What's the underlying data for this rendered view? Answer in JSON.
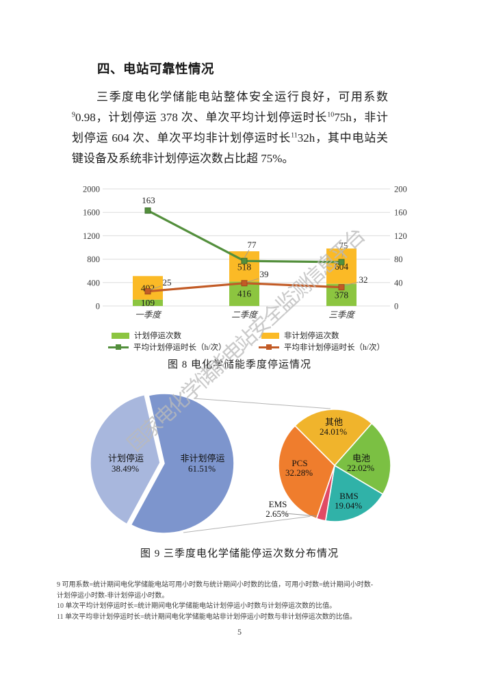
{
  "watermark": "国家电化学储能电站安全监测信息平台",
  "heading": "四、电站可靠性情况",
  "paragraph": {
    "lines": [
      [
        {
          "t": "三季度电化学储能电站整体安全运行良好，可用系数"
        }
      ],
      [
        {
          "t": "9",
          "sup": true
        },
        {
          "t": "0.98，计划停运 378 次、单次平均计划停运时长"
        },
        {
          "t": "10",
          "sup": true
        },
        {
          "t": "75h，非计"
        }
      ],
      [
        {
          "t": "划停运 604 次、单次平均非计划停运时长"
        },
        {
          "t": "11",
          "sup": true
        },
        {
          "t": "32h，其中电站关"
        }
      ],
      [
        {
          "t": "键设备及系统非计划停运次数占比超 75%。"
        }
      ]
    ]
  },
  "figure8": {
    "caption": "图 8 电化学储能季度停运情况",
    "legend": [
      {
        "label": "计划停运次数",
        "type": "swatch",
        "color": "#8CC540"
      },
      {
        "label": "非计划停运次数",
        "type": "swatch",
        "color": "#FBBA26"
      },
      {
        "label": "平均计划停运时长（h/次）",
        "type": "line",
        "color": "#538F3C"
      },
      {
        "label": "平均非计划停运时长（h/次）",
        "type": "line",
        "color": "#C25B26"
      }
    ]
  },
  "figure9": {
    "caption": "图 9 三季度电化学储能停运次数分布情况"
  },
  "chart_data": [
    {
      "type": "bar",
      "subtype": "stacked-bars-with-lines",
      "categories": [
        "一季度",
        "二季度",
        "三季度"
      ],
      "left_axis": {
        "min": 0,
        "max": 2000,
        "ticks": [
          0,
          400,
          800,
          1200,
          1600,
          2000
        ]
      },
      "right_axis": {
        "min": 0,
        "max": 200,
        "ticks": [
          0,
          40,
          80,
          120,
          160,
          200
        ]
      },
      "series": [
        {
          "name": "计划停运次数",
          "render": "bar",
          "axis": "left",
          "color": "#8CC540",
          "values": [
            109,
            416,
            378
          ]
        },
        {
          "name": "非计划停运次数",
          "render": "bar",
          "axis": "left",
          "stacked_on": "计划停运次数",
          "color": "#FBBA26",
          "values": [
            402,
            518,
            604
          ]
        },
        {
          "name": "平均计划停运时长（h/次）",
          "render": "line",
          "axis": "right",
          "color": "#538F3C",
          "values": [
            163,
            77,
            75
          ]
        },
        {
          "name": "平均非计划停运时长（h/次）",
          "render": "line",
          "axis": "right",
          "color": "#C25B26",
          "values": [
            25,
            39,
            32
          ]
        }
      ],
      "title": "图 8 电化学储能季度停运情况",
      "xlabel": "",
      "ylabel": "",
      "grid": true,
      "legend_position": "bottom"
    },
    {
      "type": "pie",
      "subtype": "pie-of-pie",
      "title": "图 9 三季度电化学储能停运次数分布情况",
      "main": {
        "slices": [
          {
            "label": "非计划停运",
            "value": 61.51,
            "display": "61.51%",
            "color": "#7D95CD"
          },
          {
            "label": "计划停运",
            "value": 38.49,
            "display": "38.49%",
            "color": "#A8B7DD"
          }
        ]
      },
      "detail": {
        "slices": [
          {
            "label": "其他",
            "value": 24.01,
            "display": "24.01%",
            "color": "#F0B42C"
          },
          {
            "label": "电池",
            "value": 22.02,
            "display": "22.02%",
            "color": "#7BC043"
          },
          {
            "label": "BMS",
            "value": 19.04,
            "display": "19.04%",
            "color": "#30B2A8"
          },
          {
            "label": "EMS",
            "value": 2.65,
            "display": "2.65%",
            "color": "#E14A64"
          },
          {
            "label": "PCS",
            "value": 32.28,
            "display": "32.28%",
            "color": "#EF7D2D"
          }
        ]
      }
    }
  ],
  "footnotes": [
    "9 可用系数=统计期间电化学储能电站可用小时数与统计期间小时数的比值，可用小时数=统计期间小时数-计划停运小时数-非计划停运小时数。",
    "10 单次平均计划停运时长=统计期间电化学储能电站计划停运小时数与计划停运次数的比值。",
    "11 单次平均非计划停运时长=统计期间电化学储能电站非计划停运小时数与非计划停运次数的比值。"
  ],
  "page_number": "5"
}
